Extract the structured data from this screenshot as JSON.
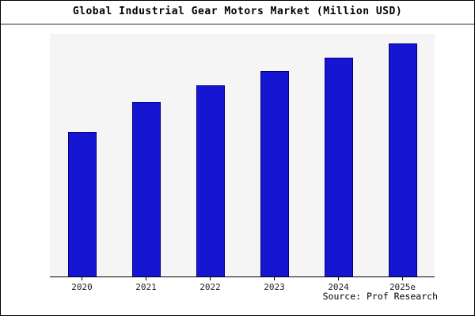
{
  "chart_data": {
    "type": "bar",
    "title": "Global Industrial Gear Motors Market (Million USD)",
    "categories": [
      "2020",
      "2021",
      "2022",
      "2023",
      "2024",
      "2025e"
    ],
    "values": [
      62,
      75,
      82,
      88,
      94,
      100
    ],
    "xlabel": "",
    "ylabel": "",
    "ylim": [
      0,
      104
    ],
    "grid": false,
    "legend": false,
    "bar_color": "#1616d2",
    "bar_edge_color": "#000080",
    "plot_bg": "#f5f5f5",
    "source": "Source: Prof Research"
  }
}
